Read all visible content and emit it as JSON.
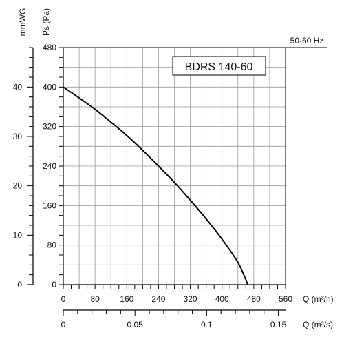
{
  "chart_data": {
    "type": "line",
    "model_label": "BDRS 140-60",
    "frequency_label": "50-60 Hz",
    "ylabel_pressure": "Ps (Pa)",
    "ylabel_mmwg": "mmWG",
    "xlabel_m3h": "Q (m³/h)",
    "xlabel_m3s": "Q (m³/s)",
    "xlim_m3h": [
      0,
      560
    ],
    "ylim_pa": [
      0,
      480
    ],
    "ylim_mmwg": [
      0,
      48
    ],
    "xlim_m3s": [
      0,
      0.155
    ],
    "x_ticks_m3h": [
      0,
      80,
      160,
      240,
      320,
      400,
      480,
      560
    ],
    "y_ticks_pa": [
      0,
      80,
      160,
      240,
      320,
      400,
      480
    ],
    "y_ticks_mmwg": [
      0,
      10,
      20,
      30,
      40
    ],
    "x_ticks_m3s": [
      0,
      0.05,
      0.1,
      0.15
    ],
    "x_tick_labels_m3s": [
      "0",
      "0.05",
      "0.1",
      "0.15"
    ],
    "grid": true,
    "series": [
      {
        "color": "#000000",
        "x": [
          0,
          40,
          80,
          120,
          160,
          200,
          240,
          280,
          320,
          360,
          400,
          440,
          465
        ],
        "y": [
          400,
          378,
          355,
          329,
          302,
          272,
          240,
          207,
          171,
          133,
          92,
          45,
          0
        ]
      }
    ]
  }
}
